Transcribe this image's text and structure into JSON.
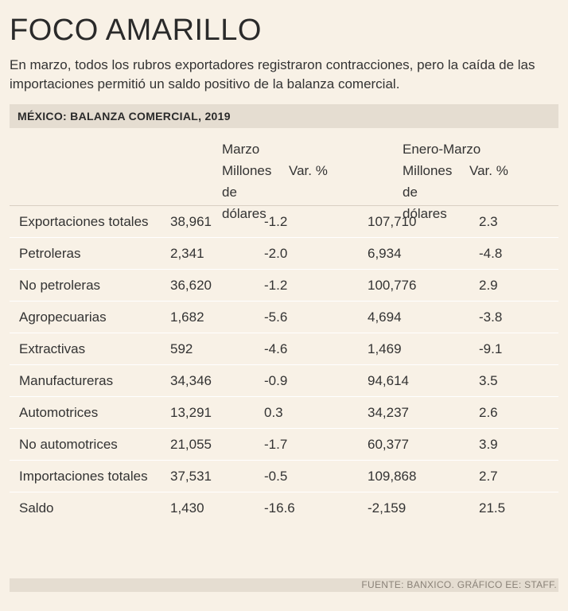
{
  "title": "FOCO AMARILLO",
  "subtitle": "En marzo, todos los rubros exportadores registraron contracciones, pero la caída de las importaciones permitió un saldo positivo de la balanza comercial.",
  "section_title": "MÉXICO: BALANZA COMERCIAL, 2019",
  "headers": {
    "marzo": {
      "period": "Marzo",
      "col1": "Millones de dólares",
      "col2": "Var. %"
    },
    "enero_marzo": {
      "period": "Enero-Marzo",
      "col1": "Millones de dólares",
      "col2": "Var. %"
    }
  },
  "rows": [
    {
      "label": "Exportaciones totales",
      "indent": 0,
      "marzo_mdd": "38,961",
      "marzo_var": "-1.2",
      "em_mdd": "107,710",
      "em_var": "2.3"
    },
    {
      "label": "Petroleras",
      "indent": 1,
      "marzo_mdd": "2,341",
      "marzo_var": "-2.0",
      "em_mdd": "6,934",
      "em_var": "-4.8"
    },
    {
      "label": "No petroleras",
      "indent": 1,
      "marzo_mdd": "36,620",
      "marzo_var": "-1.2",
      "em_mdd": "100,776",
      "em_var": "2.9"
    },
    {
      "label": "Agropecuarias",
      "indent": 2,
      "marzo_mdd": "1,682",
      "marzo_var": "-5.6",
      "em_mdd": "4,694",
      "em_var": "-3.8"
    },
    {
      "label": "Extractivas",
      "indent": 2,
      "marzo_mdd": "592",
      "marzo_var": "-4.6",
      "em_mdd": "1,469",
      "em_var": "-9.1"
    },
    {
      "label": "Manufactureras",
      "indent": 2,
      "marzo_mdd": "34,346",
      "marzo_var": "-0.9",
      "em_mdd": "94,614",
      "em_var": "3.5"
    },
    {
      "label": "Automotrices",
      "indent": 3,
      "marzo_mdd": "13,291",
      "marzo_var": "0.3",
      "em_mdd": "34,237",
      "em_var": "2.6"
    },
    {
      "label": "No automotrices",
      "indent": 3,
      "marzo_mdd": "21,055",
      "marzo_var": "-1.7",
      "em_mdd": "60,377",
      "em_var": "3.9"
    },
    {
      "label": "Importaciones totales",
      "indent": 0,
      "marzo_mdd": "37,531",
      "marzo_var": "-0.5",
      "em_mdd": "109,868",
      "em_var": "2.7"
    },
    {
      "label": "Saldo",
      "indent": 0,
      "marzo_mdd": "1,430",
      "marzo_var": "-16.6",
      "em_mdd": "-2,159",
      "em_var": "21.5"
    }
  ],
  "source": "FUENTE: BANXICO. GRÁFICO EE: STAFF.",
  "colors": {
    "background": "#f8f1e6",
    "bar": "#e5ddd1",
    "text": "#333333"
  }
}
